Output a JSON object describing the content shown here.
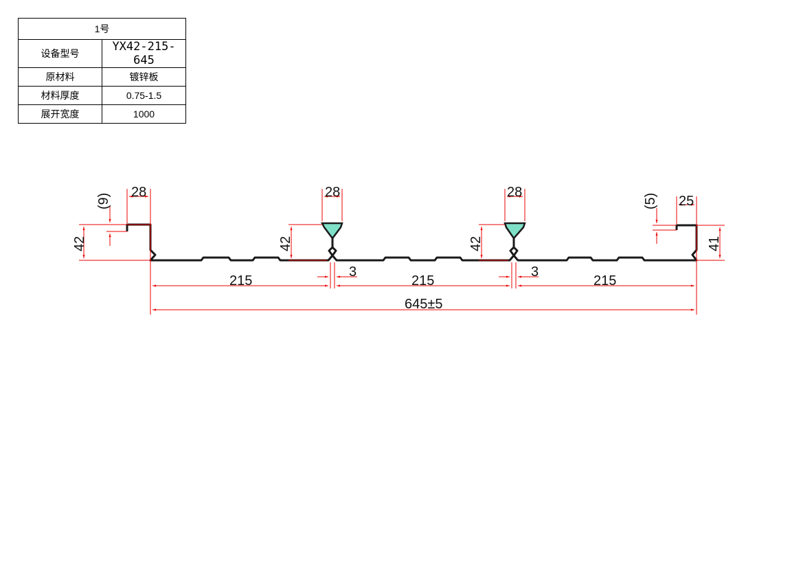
{
  "table": {
    "title": "1号",
    "rows": [
      {
        "label": "设备型号",
        "value": "YX42-215-645"
      },
      {
        "label": "原材料",
        "value": "镀锌板"
      },
      {
        "label": "材料厚度",
        "value": "0.75-1.5"
      },
      {
        "label": "展开宽度",
        "value": "1000"
      }
    ]
  },
  "drawing": {
    "dims": {
      "left_flange_width": "28",
      "rib1_width": "28",
      "rib2_width": "28",
      "right_flange_width": "25",
      "left_lip": "(9)",
      "right_lip": "(5)",
      "left_height": "42",
      "rib1_height": "42",
      "rib2_height": "42",
      "right_height": "41",
      "gap1": "3",
      "gap2": "3",
      "span1": "215",
      "span2": "215",
      "span3": "215",
      "total": "645±5"
    },
    "colors": {
      "dimension": "#e00000",
      "profile": "#1a1a1a",
      "rib_fill": "#7fe0c8"
    }
  }
}
